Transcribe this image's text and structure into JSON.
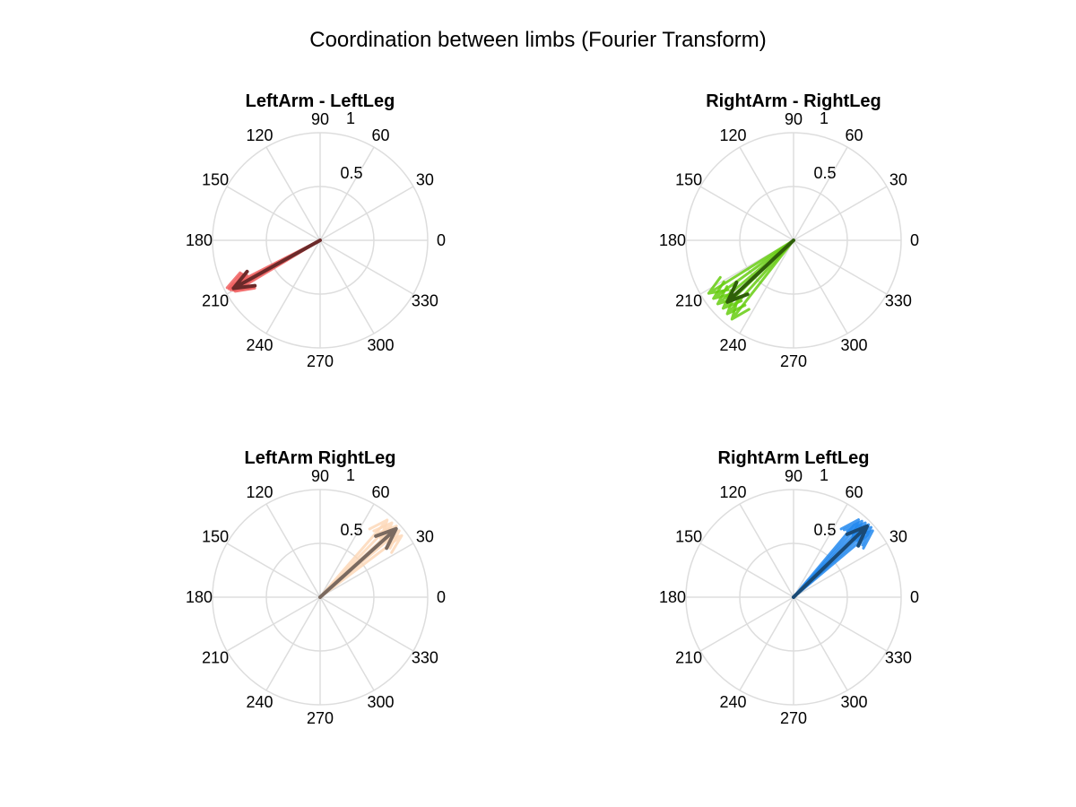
{
  "title": "Coordination between limbs (Fourier Transform)",
  "chart_data": [
    {
      "type": "polar-compass",
      "title": "LeftArm - LeftLeg",
      "rlim": [
        0,
        1
      ],
      "r_ticks": [
        "0.5",
        "1"
      ],
      "theta_ticks": [
        "0",
        "30",
        "60",
        "90",
        "120",
        "150",
        "180",
        "210",
        "240",
        "270",
        "300",
        "330"
      ],
      "grid": true,
      "colors": {
        "individual": "#f06060",
        "mean": "#6b2a2a"
      },
      "trials": [
        {
          "angle": 207,
          "magnitude": 0.97
        },
        {
          "angle": 208,
          "magnitude": 0.96
        },
        {
          "angle": 209,
          "magnitude": 0.95
        },
        {
          "angle": 210,
          "magnitude": 0.93
        },
        {
          "angle": 211,
          "magnitude": 0.92
        }
      ],
      "mean": {
        "angle": 209,
        "magnitude": 0.92
      }
    },
    {
      "type": "polar-compass",
      "title": "RightArm - RightLeg",
      "rlim": [
        0,
        1
      ],
      "r_ticks": [
        "0.5",
        "1"
      ],
      "theta_ticks": [
        "0",
        "30",
        "60",
        "90",
        "120",
        "150",
        "180",
        "210",
        "240",
        "270",
        "300",
        "330"
      ],
      "grid": true,
      "colors": {
        "individual": "#66cc11",
        "mean": "#2f5f0a"
      },
      "trials": [
        {
          "angle": 212,
          "magnitude": 0.93
        },
        {
          "angle": 216,
          "magnitude": 0.92
        },
        {
          "angle": 220,
          "magnitude": 0.92
        },
        {
          "angle": 224,
          "magnitude": 0.91
        },
        {
          "angle": 228,
          "magnitude": 0.92
        },
        {
          "angle": 232,
          "magnitude": 0.93
        }
      ],
      "mean": {
        "angle": 223,
        "magnitude": 0.84
      }
    },
    {
      "type": "polar-compass",
      "title": "LeftArm RightLeg",
      "rlim": [
        0,
        1
      ],
      "r_ticks": [
        "0.5",
        "1"
      ],
      "theta_ticks": [
        "0",
        "30",
        "60",
        "90",
        "120",
        "150",
        "180",
        "210",
        "240",
        "270",
        "300",
        "330"
      ],
      "grid": true,
      "colors": {
        "individual": "#fdd8b8",
        "mean": "#7a6a60"
      },
      "trials": [
        {
          "angle": 37,
          "magnitude": 0.95
        },
        {
          "angle": 40,
          "magnitude": 0.96
        },
        {
          "angle": 43,
          "magnitude": 0.97
        },
        {
          "angle": 46,
          "magnitude": 0.96
        },
        {
          "angle": 49,
          "magnitude": 0.95
        }
      ],
      "mean": {
        "angle": 42,
        "magnitude": 0.95
      }
    },
    {
      "type": "polar-compass",
      "title": "RightArm LeftLeg",
      "rlim": [
        0,
        1
      ],
      "r_ticks": [
        "0.5",
        "1"
      ],
      "theta_ticks": [
        "0",
        "30",
        "60",
        "90",
        "120",
        "150",
        "180",
        "210",
        "240",
        "270",
        "300",
        "330"
      ],
      "grid": true,
      "colors": {
        "individual": "#2288ee",
        "mean": "#1a4a75"
      },
      "trials": [
        {
          "angle": 40,
          "magnitude": 0.96
        },
        {
          "angle": 42,
          "magnitude": 0.97
        },
        {
          "angle": 44,
          "magnitude": 0.97
        },
        {
          "angle": 46,
          "magnitude": 0.96
        },
        {
          "angle": 48,
          "magnitude": 0.95
        },
        {
          "angle": 50,
          "magnitude": 0.94
        }
      ],
      "mean": {
        "angle": 44,
        "magnitude": 0.95
      }
    }
  ]
}
